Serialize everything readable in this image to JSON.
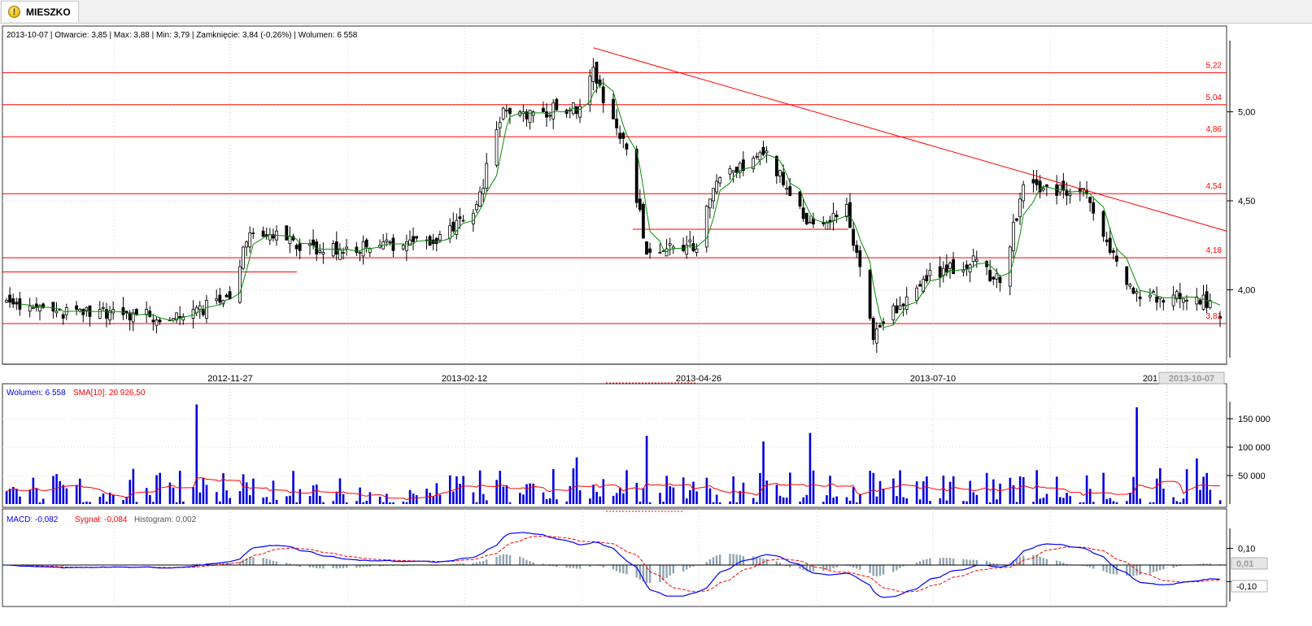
{
  "tab": {
    "label": "MIESZKO",
    "icon": "warning-icon"
  },
  "colors": {
    "up": "#ffffff",
    "down": "#000000",
    "sma": "#009000",
    "lines": "#ff0000",
    "volume": "#0000dd",
    "macd": "#0000ff",
    "signal": "#ff0000",
    "histogram": "#8fa4b0"
  },
  "price_pane": {
    "info": "2013-10-07 | Otwarcie: 3,85 | Max: 3,88 | Min: 3,79 | Zamknięcie: 3,84 (-0,26%)  | Wolumen: 6 558",
    "y_ticks": [
      "5,00",
      "4,50",
      "4,00"
    ],
    "x_ticks": [
      "2012-11-27",
      "2013-02-12",
      "2013-04-26",
      "2013-07-10",
      "201"
    ],
    "last_date": "2013-10-07",
    "level_labels": [
      "5,22",
      "5,04",
      "4,86",
      "4,54",
      "4,18",
      "3,81"
    ]
  },
  "volume_pane": {
    "label": "Wolumen: 6 558",
    "sma_label": "SMA[10]: 20 926,50",
    "y_ticks": [
      "150 000",
      "100 000",
      "50 000"
    ]
  },
  "macd_pane": {
    "macd_label": "MACD: -0,082",
    "signal_label": "Sygnał: -0,084",
    "hist_label": "Histogram: 0,002",
    "y_ticks": [
      "0,10",
      "-0,10"
    ],
    "current": "0,01",
    "current_low": "-0,10"
  },
  "chart_data": [
    {
      "type": "candlestick",
      "title": "MIESZKO",
      "y_range": [
        3.6,
        5.4
      ],
      "x_range": [
        "2012-10-08",
        "2013-10-07"
      ],
      "horizontal_levels": [
        5.22,
        5.04,
        4.86,
        4.54,
        4.18,
        3.81,
        4.1,
        4.34
      ],
      "trendline": [
        {
          "date": "2013-04-02",
          "value": 5.36
        },
        {
          "date": "2013-10-07",
          "value": 4.33
        }
      ],
      "anchors": [
        {
          "date": "2012-10-08",
          "close": 3.95
        },
        {
          "date": "2012-10-25",
          "close": 3.88
        },
        {
          "date": "2012-11-27",
          "close": 3.85
        },
        {
          "date": "2012-12-14",
          "close": 3.95
        },
        {
          "date": "2012-12-20",
          "close": 4.35
        },
        {
          "date": "2013-01-10",
          "close": 4.22
        },
        {
          "date": "2013-02-12",
          "close": 4.26
        },
        {
          "date": "2013-02-26",
          "close": 4.45
        },
        {
          "date": "2013-03-05",
          "close": 4.98
        },
        {
          "date": "2013-03-28",
          "close": 5.02
        },
        {
          "date": "2013-04-02",
          "close": 5.22
        },
        {
          "date": "2013-04-12",
          "close": 4.8
        },
        {
          "date": "2013-04-18",
          "close": 4.22
        },
        {
          "date": "2013-05-03",
          "close": 4.25
        },
        {
          "date": "2013-05-08",
          "close": 4.6
        },
        {
          "date": "2013-05-23",
          "close": 4.78
        },
        {
          "date": "2013-06-06",
          "close": 4.38
        },
        {
          "date": "2013-06-17",
          "close": 4.45
        },
        {
          "date": "2013-06-25",
          "close": 3.75
        },
        {
          "date": "2013-07-10",
          "close": 4.08
        },
        {
          "date": "2013-07-25",
          "close": 4.15
        },
        {
          "date": "2013-08-02",
          "close": 4.05
        },
        {
          "date": "2013-08-09",
          "close": 4.58
        },
        {
          "date": "2013-08-27",
          "close": 4.55
        },
        {
          "date": "2013-09-05",
          "close": 4.2
        },
        {
          "date": "2013-09-12",
          "close": 3.95
        },
        {
          "date": "2013-09-30",
          "close": 3.98
        },
        {
          "date": "2013-10-07",
          "close": 3.84
        }
      ],
      "last": {
        "date": "2013-10-07",
        "open": 3.85,
        "high": 3.88,
        "low": 3.79,
        "close": 3.84
      }
    },
    {
      "type": "bar",
      "title": "Wolumen",
      "y_range": [
        0,
        180000
      ],
      "spikes": [
        {
          "date": "2012-12-04",
          "value": 175000
        },
        {
          "date": "2013-03-28",
          "value": 82000
        },
        {
          "date": "2013-04-18",
          "value": 120000
        },
        {
          "date": "2013-05-23",
          "value": 110000
        },
        {
          "date": "2013-06-06",
          "value": 125000
        },
        {
          "date": "2013-09-12",
          "value": 170000
        },
        {
          "date": "2013-09-30",
          "value": 80000
        }
      ],
      "series": [
        {
          "name": "Wolumen",
          "values_note": ""
        },
        {
          "name": "SMA[10]"
        }
      ]
    },
    {
      "type": "line",
      "title": "MACD",
      "y_range": [
        -0.23,
        0.23
      ],
      "series": [
        {
          "name": "MACD"
        },
        {
          "name": "Sygnał"
        },
        {
          "name": "Histogram"
        }
      ],
      "last": {
        "macd": -0.082,
        "signal": -0.084,
        "histogram": 0.002
      }
    }
  ]
}
